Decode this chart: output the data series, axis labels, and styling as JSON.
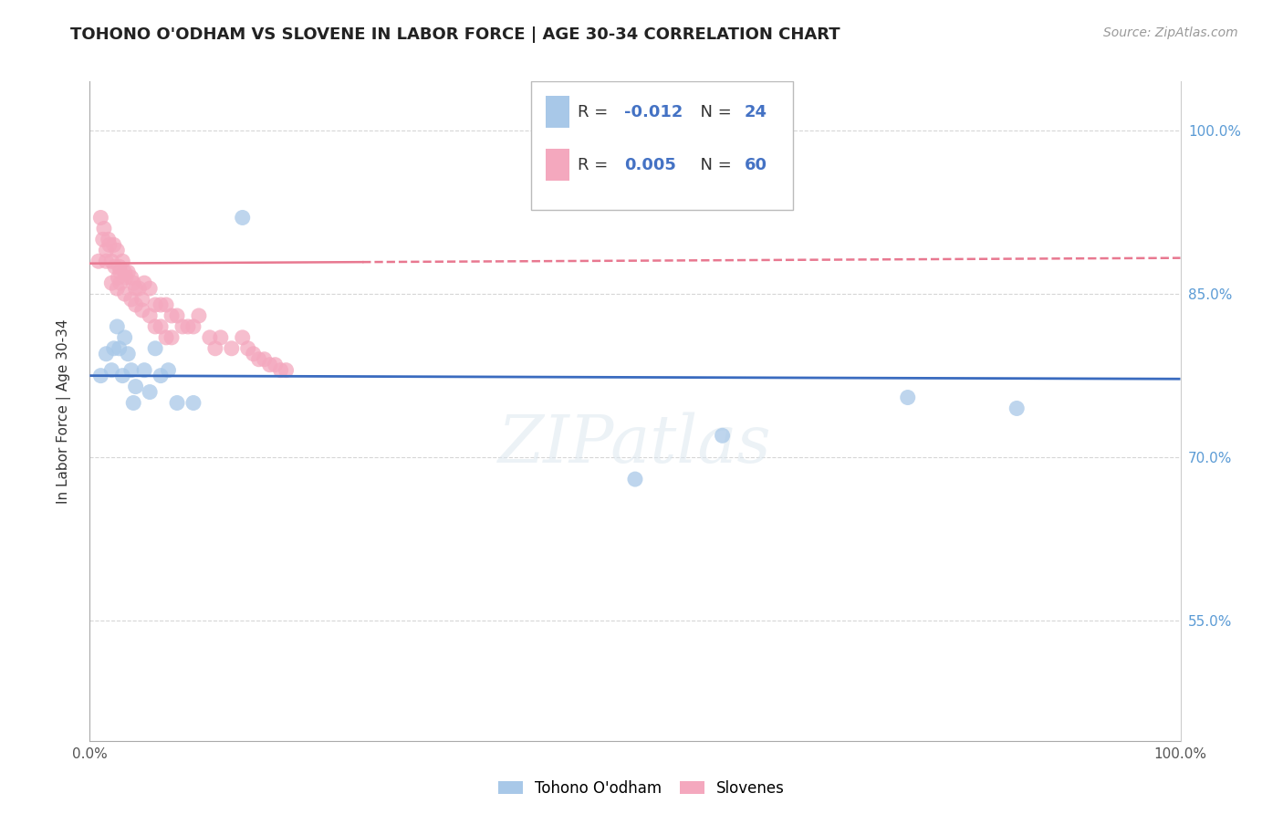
{
  "title": "TOHONO O'ODHAM VS SLOVENE IN LABOR FORCE | AGE 30-34 CORRELATION CHART",
  "source": "Source: ZipAtlas.com",
  "ylabel": "In Labor Force | Age 30-34",
  "xlim": [
    0.0,
    1.0
  ],
  "ylim": [
    0.44,
    1.045
  ],
  "xtick_positions": [
    0.0,
    1.0
  ],
  "xticklabels": [
    "0.0%",
    "100.0%"
  ],
  "ytick_positions": [
    0.55,
    0.7,
    0.85,
    1.0
  ],
  "yticklabels": [
    "55.0%",
    "70.0%",
    "85.0%",
    "100.0%"
  ],
  "color_blue": "#a8c8e8",
  "color_pink": "#f4a8be",
  "trendline_blue": "#3a6bbf",
  "trendline_pink": "#e87890",
  "grid_color": "#cccccc",
  "r1": "-0.012",
  "n1": "24",
  "r2": "0.005",
  "n2": "60",
  "legend_bottom": [
    "Tohono O'odham",
    "Slovenes"
  ],
  "watermark": "ZIPatlas",
  "blue_trend_y_start": 0.775,
  "blue_trend_y_end": 0.772,
  "pink_trend_y_start": 0.878,
  "pink_trend_y_end": 0.883,
  "blue_x": [
    0.01,
    0.015,
    0.02,
    0.022,
    0.025,
    0.027,
    0.03,
    0.032,
    0.035,
    0.038,
    0.04,
    0.042,
    0.05,
    0.055,
    0.06,
    0.065,
    0.072,
    0.08,
    0.095,
    0.14,
    0.5,
    0.58,
    0.75,
    0.85
  ],
  "blue_y": [
    0.775,
    0.795,
    0.78,
    0.8,
    0.82,
    0.8,
    0.775,
    0.81,
    0.795,
    0.78,
    0.75,
    0.765,
    0.78,
    0.76,
    0.8,
    0.775,
    0.78,
    0.75,
    0.75,
    0.92,
    0.68,
    0.72,
    0.755,
    0.745
  ],
  "pink_x": [
    0.008,
    0.01,
    0.012,
    0.013,
    0.015,
    0.015,
    0.017,
    0.018,
    0.02,
    0.022,
    0.023,
    0.025,
    0.026,
    0.027,
    0.028,
    0.03,
    0.032,
    0.033,
    0.035,
    0.038,
    0.04,
    0.042,
    0.045,
    0.048,
    0.05,
    0.055,
    0.06,
    0.065,
    0.07,
    0.075,
    0.08,
    0.085,
    0.09,
    0.095,
    0.1,
    0.11,
    0.115,
    0.12,
    0.13,
    0.14,
    0.145,
    0.15,
    0.155,
    0.16,
    0.165,
    0.17,
    0.175,
    0.18,
    0.02,
    0.025,
    0.028,
    0.032,
    0.038,
    0.042,
    0.048,
    0.055,
    0.06,
    0.065,
    0.07,
    0.075
  ],
  "pink_y": [
    0.88,
    0.92,
    0.9,
    0.91,
    0.89,
    0.88,
    0.9,
    0.895,
    0.88,
    0.895,
    0.875,
    0.89,
    0.865,
    0.875,
    0.87,
    0.88,
    0.87,
    0.865,
    0.87,
    0.865,
    0.86,
    0.855,
    0.855,
    0.845,
    0.86,
    0.855,
    0.84,
    0.84,
    0.84,
    0.83,
    0.83,
    0.82,
    0.82,
    0.82,
    0.83,
    0.81,
    0.8,
    0.81,
    0.8,
    0.81,
    0.8,
    0.795,
    0.79,
    0.79,
    0.785,
    0.785,
    0.78,
    0.78,
    0.86,
    0.855,
    0.86,
    0.85,
    0.845,
    0.84,
    0.835,
    0.83,
    0.82,
    0.82,
    0.81,
    0.81
  ],
  "figsize": [
    14.06,
    8.92
  ],
  "dpi": 100
}
